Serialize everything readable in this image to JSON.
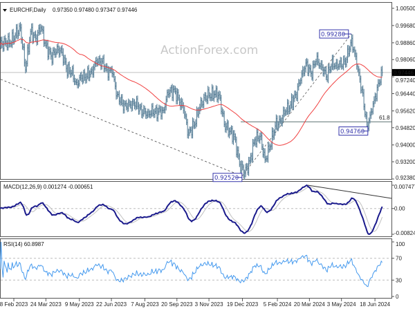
{
  "header": {
    "symbol": "EURCHF,Daily",
    "ohlc": "0.97350 0.97480 0.97347 0.97446",
    "macd_label": "MACD(12,26,9) 0.001274 -0.000651",
    "rsi_label": "RSI(14) 60.8987"
  },
  "watermark": "ActionForex.com",
  "colors": {
    "bars": "#5b8199",
    "moving_average": "#f04040",
    "macd_main": "#1a1a8c",
    "macd_signal": "#c0c0c0",
    "rsi": "#4499ee",
    "annotation": "#3333aa"
  },
  "annotations": {
    "high": "0.99280",
    "low_recent": "0.94760",
    "low_major": "0.92520",
    "fib": "61.8",
    "current_price": "0.97446"
  },
  "chart_data": [
    {
      "type": "ohlc",
      "title": "EURCHF,Daily",
      "price_ticks": [
        "1.00500",
        "0.99680",
        "0.98860",
        "0.98060",
        "0.97240",
        "0.96440",
        "0.95620",
        "0.94820",
        "0.94000",
        "0.93200",
        "0.92380"
      ],
      "ylim": [
        0.9238,
        1.005
      ],
      "x_ticks": [
        "8 Feb 2023",
        "24 Mar 2023",
        "9 May 2023",
        "22 Jun 2023",
        "7 Aug 2023",
        "20 Sep 2023",
        "3 Nov 2023",
        "19 Dec 2023",
        "5 Feb 2024",
        "20 Mar 2024",
        "3 May 2024",
        "18 Jun 2024"
      ],
      "weekly_closes": [
        [
          "2023-01-20",
          0.9873
        ],
        [
          "2023-01-27",
          0.989
        ],
        [
          "2023-02-03",
          0.9883
        ],
        [
          "2023-02-10",
          0.9923
        ],
        [
          "2023-02-17",
          0.9957
        ],
        [
          "2023-02-24",
          0.9757
        ],
        [
          "2023-03-03",
          0.994
        ],
        [
          "2023-03-10",
          0.9907
        ],
        [
          "2023-03-17",
          0.9957
        ],
        [
          "2023-03-24",
          0.9873
        ],
        [
          "2023-03-31",
          0.9823
        ],
        [
          "2023-04-07",
          0.984
        ],
        [
          "2023-04-14",
          0.9857
        ],
        [
          "2023-04-21",
          0.9764
        ],
        [
          "2023-04-28",
          0.974
        ],
        [
          "2023-05-05",
          0.9697
        ],
        [
          "2023-05-12",
          0.9717
        ],
        [
          "2023-05-19",
          0.9724
        ],
        [
          "2023-05-26",
          0.9757
        ],
        [
          "2023-06-02",
          0.979
        ],
        [
          "2023-06-09",
          0.9797
        ],
        [
          "2023-06-16",
          0.9757
        ],
        [
          "2023-06-23",
          0.974
        ],
        [
          "2023-06-30",
          0.964
        ],
        [
          "2023-07-07",
          0.9597
        ],
        [
          "2023-07-14",
          0.9574
        ],
        [
          "2023-07-21",
          0.9607
        ],
        [
          "2023-07-28",
          0.9584
        ],
        [
          "2023-08-04",
          0.955
        ],
        [
          "2023-08-11",
          0.9557
        ],
        [
          "2023-08-18",
          0.955
        ],
        [
          "2023-08-25",
          0.9557
        ],
        [
          "2023-09-01",
          0.9564
        ],
        [
          "2023-09-08",
          0.964
        ],
        [
          "2023-09-15",
          0.9664
        ],
        [
          "2023-09-22",
          0.9624
        ],
        [
          "2023-09-29",
          0.9564
        ],
        [
          "2023-10-06",
          0.9457
        ],
        [
          "2023-10-13",
          0.949
        ],
        [
          "2023-10-20",
          0.9564
        ],
        [
          "2023-10-27",
          0.9624
        ],
        [
          "2023-11-03",
          0.9634
        ],
        [
          "2023-11-10",
          0.964
        ],
        [
          "2023-11-17",
          0.964
        ],
        [
          "2023-11-24",
          0.9497
        ],
        [
          "2023-12-01",
          0.9464
        ],
        [
          "2023-12-08",
          0.944
        ],
        [
          "2023-12-15",
          0.9307
        ],
        [
          "2023-12-22",
          0.9264
        ],
        [
          "2023-12-29",
          0.9324
        ],
        [
          "2024-01-05",
          0.9424
        ],
        [
          "2024-01-12",
          0.944
        ],
        [
          "2024-01-19",
          0.9331
        ],
        [
          "2024-01-26",
          0.9391
        ],
        [
          "2024-02-02",
          0.949
        ],
        [
          "2024-02-09",
          0.9517
        ],
        [
          "2024-02-16",
          0.9557
        ],
        [
          "2024-02-23",
          0.959
        ],
        [
          "2024-03-01",
          0.964
        ],
        [
          "2024-03-08",
          0.9707
        ],
        [
          "2024-03-15",
          0.979
        ],
        [
          "2024-03-22",
          0.974
        ],
        [
          "2024-03-29",
          0.9797
        ],
        [
          "2024-04-05",
          0.9784
        ],
        [
          "2024-04-12",
          0.9724
        ],
        [
          "2024-04-19",
          0.9774
        ],
        [
          "2024-04-26",
          0.979
        ],
        [
          "2024-05-03",
          0.9774
        ],
        [
          "2024-05-10",
          0.9807
        ],
        [
          "2024-05-17",
          0.9907
        ],
        [
          "2024-05-24",
          0.9774
        ],
        [
          "2024-05-31",
          0.9664
        ],
        [
          "2024-06-07",
          0.949
        ],
        [
          "2024-06-14",
          0.9557
        ],
        [
          "2024-06-21",
          0.9674
        ],
        [
          "2024-06-28",
          0.97446
        ]
      ]
    },
    {
      "type": "line",
      "title": "MACD(12,26,9) 0.001274 -0.000651",
      "y_ticks": [
        "0.007477",
        "0.00",
        "-0.00824"
      ],
      "ylim": [
        -0.00824,
        0.007477
      ]
    },
    {
      "type": "line",
      "title": "RSI(14) 60.8987",
      "y_ticks": [
        "100",
        "70",
        "30",
        "0"
      ],
      "ylim": [
        0,
        100
      ],
      "levels": [
        70,
        30
      ]
    }
  ]
}
